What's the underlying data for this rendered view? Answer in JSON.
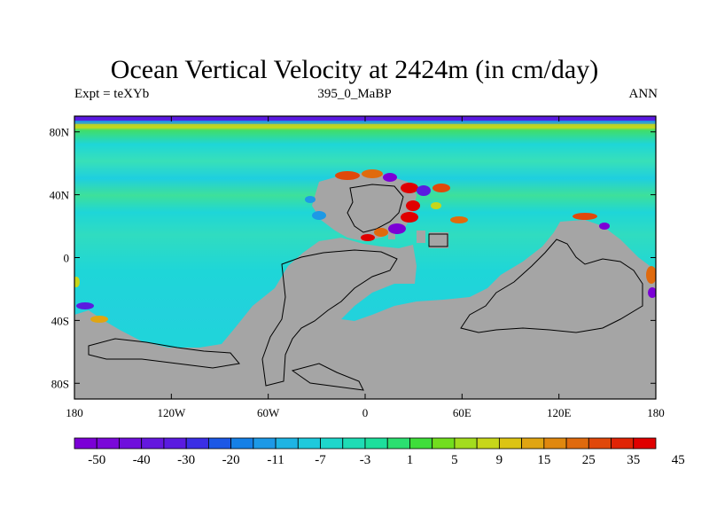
{
  "map": {
    "title": "Ocean Vertical Velocity at 2424m (in cm/day)",
    "left_string": "Expt = teXYb",
    "center_string": "395_0_MaBP",
    "right_string": "ANN",
    "lon_range": [
      -180,
      180
    ],
    "lat_range": [
      -90,
      90
    ],
    "land_color": "#a5a5a5",
    "x_ticks": [
      {
        "lon": -180,
        "label": "180"
      },
      {
        "lon": -120,
        "label": "120W"
      },
      {
        "lon": -60,
        "label": "60W"
      },
      {
        "lon": 0,
        "label": "0"
      },
      {
        "lon": 60,
        "label": "60E"
      },
      {
        "lon": 120,
        "label": "120E"
      },
      {
        "lon": 180,
        "label": "180"
      }
    ],
    "y_ticks": [
      {
        "lat": 80,
        "label": "80N"
      },
      {
        "lat": 40,
        "label": "40N"
      },
      {
        "lat": 0,
        "label": "0"
      },
      {
        "lat": -40,
        "label": "40S"
      },
      {
        "lat": -80,
        "label": "80S"
      }
    ]
  },
  "colorbar": {
    "colors": [
      "#7b00d6",
      "#7a08d9",
      "#6f0fdc",
      "#6418de",
      "#5a1be0",
      "#3a2ee5",
      "#1c58e6",
      "#1580e6",
      "#1d99e6",
      "#1eb4e3",
      "#1ec9dc",
      "#1ed6cb",
      "#1edcb5",
      "#1ddf9c",
      "#2bdf70",
      "#3fde3a",
      "#72de1e",
      "#a3dc1e",
      "#c7d61a",
      "#dcc414",
      "#e0a512",
      "#e0880f",
      "#e06a0d",
      "#e0480a",
      "#e02405",
      "#e00000"
    ],
    "labels": [
      {
        "boundary": 1,
        "text": "-50"
      },
      {
        "boundary": 3,
        "text": "-40"
      },
      {
        "boundary": 5,
        "text": "-30"
      },
      {
        "boundary": 7,
        "text": "-20"
      },
      {
        "boundary": 9,
        "text": "-11"
      },
      {
        "boundary": 11,
        "text": "-7"
      },
      {
        "boundary": 13,
        "text": "-3"
      },
      {
        "boundary": 15,
        "text": "1"
      },
      {
        "boundary": 17,
        "text": "5"
      },
      {
        "boundary": 19,
        "text": "9"
      },
      {
        "boundary": 21,
        "text": "15"
      },
      {
        "boundary": 23,
        "text": "25"
      },
      {
        "boundary": 25,
        "text": "35"
      },
      {
        "boundary": 27,
        "text": "45"
      }
    ]
  },
  "field_colors": {
    "ocean_base": "#1ed6d8",
    "band_light": "#38e0b8",
    "band_green": "#3fde6a",
    "band_yellow": "#c7d61a",
    "band_blue": "#1d99e6",
    "band_purple": "#5a1be0",
    "hot_red": "#e00000",
    "hot_orange": "#e06a0d",
    "cold_purple": "#7b00d6"
  }
}
